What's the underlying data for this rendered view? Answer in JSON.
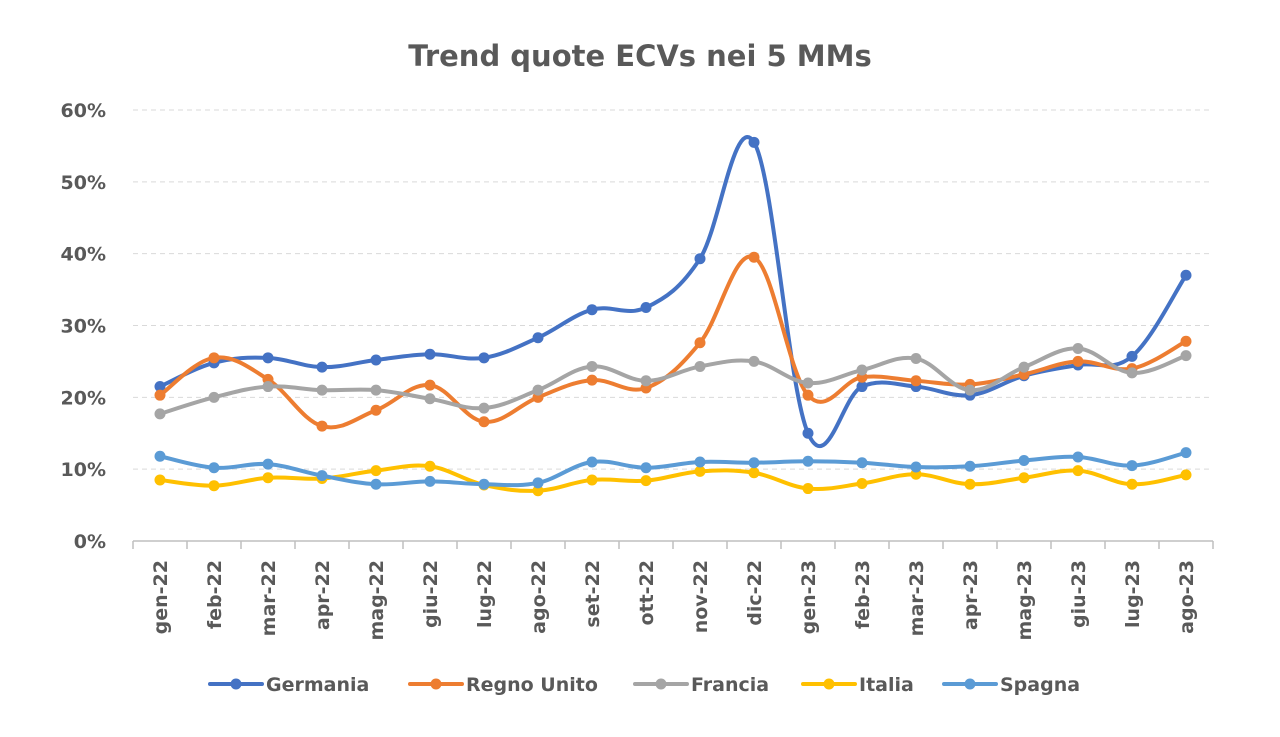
{
  "chart_data": {
    "type": "line",
    "title": "Trend quote ECVs nei 5 MMs",
    "xlabel": "",
    "ylabel": "",
    "ylim": [
      0,
      60
    ],
    "yticks": [
      "0%",
      "10%",
      "20%",
      "30%",
      "40%",
      "50%",
      "60%"
    ],
    "grid": true,
    "legend_position": "bottom",
    "categories": [
      "gen-22",
      "feb-22",
      "mar-22",
      "apr-22",
      "mag-22",
      "giu-22",
      "lug-22",
      "ago-22",
      "set-22",
      "ott-22",
      "nov-22",
      "dic-22",
      "gen-23",
      "feb-23",
      "mar-23",
      "apr-23",
      "mag-23",
      "giu-23",
      "lug-23",
      "ago-23"
    ],
    "series": [
      {
        "name": "Germania",
        "color": "#4472C4",
        "values": [
          21.5,
          24.8,
          25.5,
          24.2,
          25.2,
          26.0,
          25.5,
          28.3,
          32.2,
          32.5,
          39.3,
          55.5,
          15.0,
          21.5,
          21.5,
          20.3,
          23.0,
          24.5,
          25.7,
          37.0
        ]
      },
      {
        "name": "Regno Unito",
        "color": "#ED7D31",
        "values": [
          20.3,
          25.5,
          22.5,
          16.0,
          18.2,
          21.7,
          16.6,
          20.0,
          22.4,
          21.3,
          27.6,
          39.5,
          20.3,
          22.8,
          22.3,
          21.8,
          23.2,
          25.0,
          24.0,
          27.8
        ]
      },
      {
        "name": "Francia",
        "color": "#A5A5A5",
        "values": [
          17.7,
          20.0,
          21.5,
          21.0,
          21.0,
          19.8,
          18.5,
          21.0,
          24.3,
          22.3,
          24.3,
          25.0,
          22.0,
          23.8,
          25.4,
          21.0,
          24.2,
          26.8,
          23.4,
          25.8
        ]
      },
      {
        "name": "Italia",
        "color": "#FFC000",
        "values": [
          8.5,
          7.7,
          8.8,
          8.7,
          9.8,
          10.4,
          7.8,
          7.0,
          8.5,
          8.4,
          9.7,
          9.5,
          7.3,
          8.0,
          9.3,
          7.9,
          8.8,
          9.8,
          7.9,
          9.2
        ]
      },
      {
        "name": "Spagna",
        "color": "#5B9BD5",
        "values": [
          11.8,
          10.2,
          10.7,
          9.1,
          7.9,
          8.3,
          7.9,
          8.1,
          11.0,
          10.2,
          11.0,
          10.9,
          11.1,
          10.9,
          10.3,
          10.4,
          11.2,
          11.7,
          10.5,
          12.3
        ]
      }
    ]
  }
}
